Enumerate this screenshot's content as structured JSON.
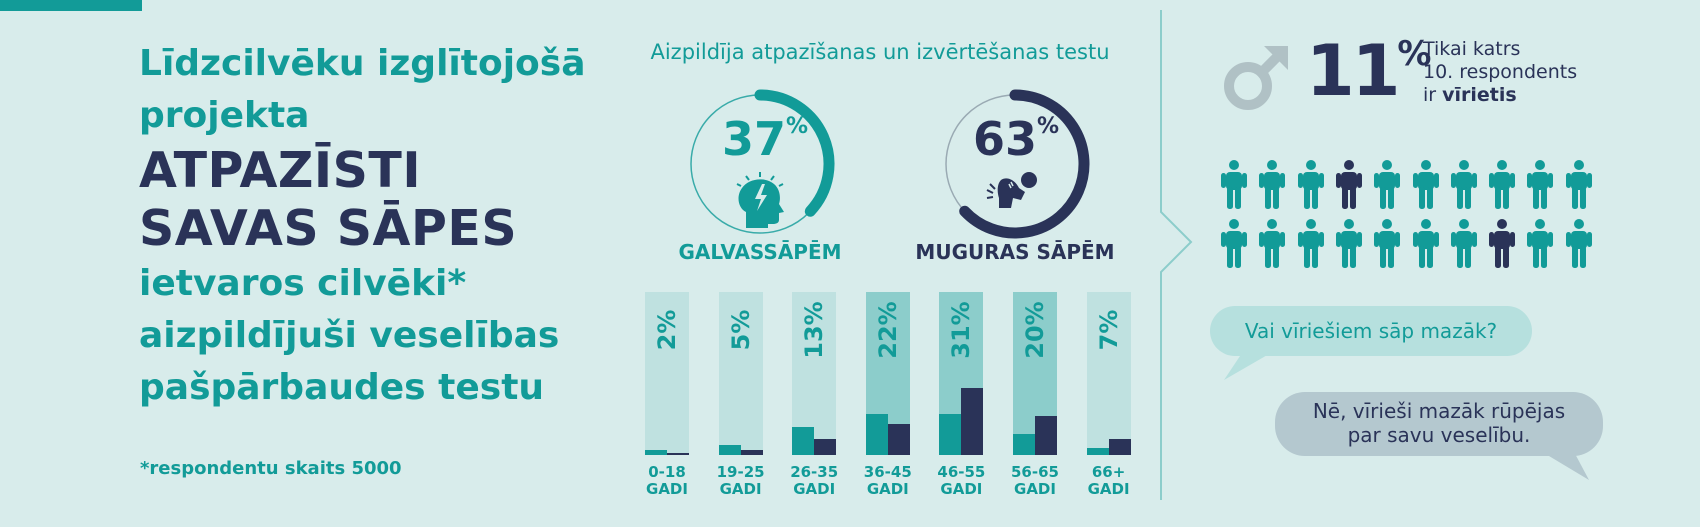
{
  "intro": {
    "line1": "Līdzcilvēku izglītojošā",
    "line2": "projekta",
    "project_line1": "ATPAZĪSTI",
    "project_line2": "SAVAS SĀPES",
    "line3": "ietvaros cilvēki*",
    "line4": "aizpildījuši veselības",
    "line5": "pašpārbaudes testu",
    "footnote": "*respondentu skaits 5000"
  },
  "tests": {
    "heading": "Aizpildīja atpazīšanas un izvērtēšanas testu",
    "headache": {
      "value": "37",
      "unit": "%",
      "fraction": 0.37,
      "label": "GALVASSĀPĒM"
    },
    "backpain": {
      "value": "63",
      "unit": "%",
      "fraction": 0.63,
      "label": "MUGURAS SĀPĒM"
    }
  },
  "chart_data": {
    "type": "bar",
    "categories": [
      {
        "line1": "0-18",
        "line2": "GADI"
      },
      {
        "line1": "19-25",
        "line2": "GADI"
      },
      {
        "line1": "26-35",
        "line2": "GADI"
      },
      {
        "line1": "36-45",
        "line2": "GADI"
      },
      {
        "line1": "46-55",
        "line2": "GADI"
      },
      {
        "line1": "56-65",
        "line2": "GADI"
      },
      {
        "line1": "66+",
        "line2": "GADI"
      }
    ],
    "percent_labels": [
      "2%",
      "5%",
      "13%",
      "22%",
      "31%",
      "20%",
      "7%"
    ],
    "values": [
      2,
      5,
      13,
      22,
      31,
      20,
      7
    ],
    "series_values": [
      [
        3,
        1
      ],
      [
        6,
        3
      ],
      [
        17,
        10
      ],
      [
        25,
        19
      ],
      [
        25,
        41
      ],
      [
        13,
        24
      ],
      [
        4,
        10
      ]
    ],
    "series_colors": [
      "#129b98",
      "#2a3358"
    ],
    "highlighted": [
      false,
      false,
      false,
      true,
      true,
      true,
      false
    ],
    "ylim": [
      0,
      100
    ]
  },
  "men": {
    "percent_value": "11",
    "percent_unit": "%",
    "desc_line1": "Tikai katrs",
    "desc_line2": "10. respondents",
    "desc_line3_prefix": "ir ",
    "desc_line3_bold": "vīrietis",
    "people_highlighted": [
      3,
      17
    ],
    "people_count": 20
  },
  "dialogue": {
    "question": "Vai vīriešiem sāp mazāk?",
    "answer_line1": "Nē, vīrieši mazāk rūpējas",
    "answer_line2": "par savu veselību."
  },
  "colors": {
    "background": "#d8eceb",
    "teal": "#129b98",
    "navy": "#2a3358",
    "bar_bg": "#bfe1e0",
    "bar_bg_highlight": "#8ccdcb",
    "question_bubble": "#b6e0de",
    "answer_bubble": "#b4c8cf",
    "male_icon": "#b0c1c5"
  }
}
